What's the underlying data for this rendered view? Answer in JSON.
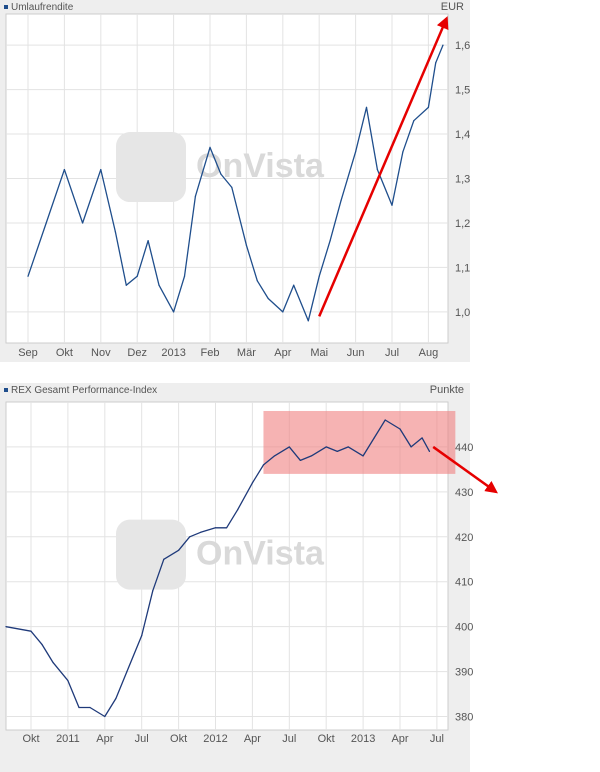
{
  "chart_data": [
    {
      "type": "line",
      "legend": "Umlaufrendite",
      "unit": "EUR",
      "watermark": "OnVista",
      "x_ticks": [
        "Sep",
        "Okt",
        "Nov",
        "Dez",
        "2013",
        "Feb",
        "Mär",
        "Apr",
        "Mai",
        "Jun",
        "Jul",
        "Aug"
      ],
      "y_ticks": [
        "1,0",
        "1,1",
        "1,2",
        "1,3",
        "1,4",
        "1,5",
        "1,6"
      ],
      "ylim": [
        0.93,
        1.67
      ],
      "grid": true,
      "series": [
        {
          "color": "#1f4e8c",
          "x": [
            0.0,
            0.5,
            1.0,
            1.5,
            2.0,
            2.4,
            2.7,
            3.0,
            3.3,
            3.6,
            4.0,
            4.3,
            4.6,
            5.0,
            5.3,
            5.6,
            6.0,
            6.3,
            6.6,
            7.0,
            7.3,
            7.7,
            8.0,
            8.3,
            8.6,
            9.0,
            9.3,
            9.6,
            10.0,
            10.3,
            10.6,
            11.0,
            11.2,
            11.4
          ],
          "values": [
            1.08,
            1.2,
            1.32,
            1.2,
            1.32,
            1.18,
            1.06,
            1.08,
            1.16,
            1.06,
            1.0,
            1.08,
            1.26,
            1.37,
            1.31,
            1.28,
            1.15,
            1.07,
            1.03,
            1.0,
            1.06,
            0.98,
            1.08,
            1.16,
            1.25,
            1.36,
            1.46,
            1.32,
            1.24,
            1.36,
            1.43,
            1.46,
            1.56,
            1.6
          ]
        }
      ],
      "annotations": [
        {
          "type": "arrow",
          "color": "#e60000",
          "from": [
            8.0,
            0.99
          ],
          "to": [
            11.5,
            1.66
          ]
        }
      ]
    },
    {
      "type": "line",
      "legend": "REX Gesamt Performance-Index",
      "unit": "Punkte",
      "watermark": "OnVista",
      "x_ticks": [
        "Okt",
        "2011",
        "Apr",
        "Jul",
        "Okt",
        "2012",
        "Apr",
        "Jul",
        "Okt",
        "2013",
        "Apr",
        "Jul"
      ],
      "y_ticks": [
        "380",
        "390",
        "400",
        "410",
        "420",
        "430",
        "440"
      ],
      "ylim": [
        377,
        450
      ],
      "grid": true,
      "series": [
        {
          "color": "#1f3a7a",
          "x": [
            -0.7,
            0.0,
            0.3,
            0.6,
            1.0,
            1.3,
            1.6,
            2.0,
            2.3,
            2.6,
            3.0,
            3.3,
            3.6,
            4.0,
            4.3,
            4.6,
            5.0,
            5.3,
            5.6,
            6.0,
            6.3,
            6.6,
            7.0,
            7.3,
            7.6,
            8.0,
            8.3,
            8.6,
            9.0,
            9.3,
            9.6,
            10.0,
            10.3,
            10.6,
            10.8
          ],
          "values": [
            400,
            399,
            396,
            392,
            388,
            382,
            382,
            380,
            384,
            390,
            398,
            408,
            415,
            417,
            420,
            421,
            422,
            422,
            426,
            432,
            436,
            438,
            440,
            437,
            438,
            440,
            439,
            440,
            438,
            442,
            446,
            444,
            440,
            442,
            439
          ]
        }
      ],
      "annotations": [
        {
          "type": "highlight-band",
          "color": "#f08080",
          "x_from": 6.3,
          "x_to": 11.5,
          "y_from": 434,
          "y_to": 448
        },
        {
          "type": "arrow",
          "color": "#e60000",
          "from": [
            10.9,
            440
          ],
          "to": [
            12.6,
            430
          ]
        }
      ]
    }
  ]
}
